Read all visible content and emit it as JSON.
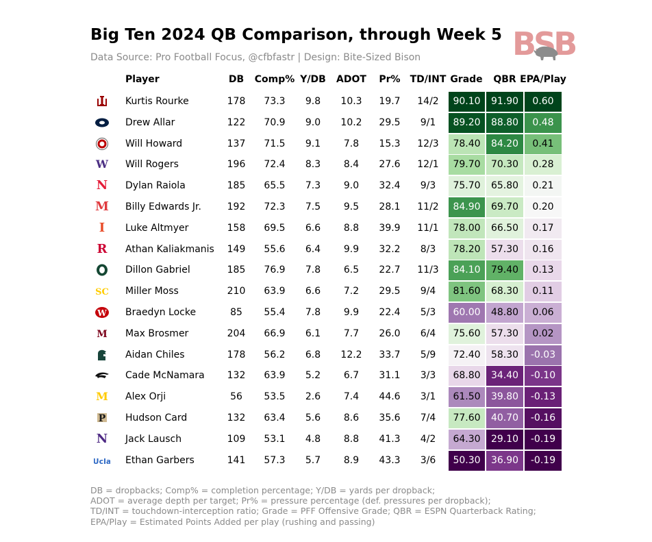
{
  "title": "Big Ten 2024 QB Comparison, through Week 5",
  "subtitle": "Data Source: Pro Football Focus, @cfbfastr | Design: Bite-Sized Bison",
  "brand": {
    "text": "BSB",
    "icon": "bison-icon",
    "color": "#e39a9a"
  },
  "footnotes": [
    "DB = dropbacks; Comp% = completion percentage; Y/DB = yards per dropback;",
    "ADOT = average depth per target; Pr% = pressure percentage (def. pressures per dropback);",
    "TD/INT = touchdown-interception ratio; Grade = PFF Offensive Grade; QBR = ESPN Quarterback Rating;",
    "EPA/Play = Estimated Points Added per play (rushing and passing)"
  ],
  "chart_data": {
    "type": "table",
    "columns": [
      "Player",
      "DB",
      "Comp%",
      "Y/DB",
      "ADOT",
      "Pr%",
      "TD/INT",
      "Grade",
      "QBR",
      "EPA/Play"
    ],
    "heatmap_columns": [
      "Grade",
      "QBR",
      "EPA/Play"
    ],
    "color_scale": {
      "low": "purple",
      "mid": "white",
      "high": "green"
    },
    "rows": [
      {
        "logo": "indiana-logo-icon",
        "logo_color": "#990000",
        "player": "Kurtis Rourke",
        "db": "178",
        "comp": "73.3",
        "ydb": "9.8",
        "adot": "10.3",
        "pr": "19.7",
        "tdint": "14/2",
        "grade": "90.10",
        "qbr": "91.90",
        "epa": "0.60"
      },
      {
        "logo": "penn-state-logo-icon",
        "logo_color": "#041e42",
        "player": "Drew Allar",
        "db": "122",
        "comp": "70.9",
        "ydb": "9.0",
        "adot": "10.2",
        "pr": "29.5",
        "tdint": "9/1",
        "grade": "89.20",
        "qbr": "88.80",
        "epa": "0.48"
      },
      {
        "logo": "ohio-state-logo-icon",
        "logo_color": "#bb0000",
        "player": "Will Howard",
        "db": "137",
        "comp": "71.5",
        "ydb": "9.1",
        "adot": "7.8",
        "pr": "15.3",
        "tdint": "12/3",
        "grade": "78.40",
        "qbr": "84.20",
        "epa": "0.41"
      },
      {
        "logo": "washington-logo-icon",
        "logo_color": "#4b2e83",
        "player": "Will Rogers",
        "db": "196",
        "comp": "72.4",
        "ydb": "8.3",
        "adot": "8.4",
        "pr": "27.6",
        "tdint": "12/1",
        "grade": "79.70",
        "qbr": "70.30",
        "epa": "0.28"
      },
      {
        "logo": "nebraska-logo-icon",
        "logo_color": "#e41c38",
        "player": "Dylan Raiola",
        "db": "185",
        "comp": "65.5",
        "ydb": "7.3",
        "adot": "9.0",
        "pr": "32.4",
        "tdint": "9/3",
        "grade": "75.70",
        "qbr": "65.80",
        "epa": "0.21"
      },
      {
        "logo": "maryland-logo-icon",
        "logo_color": "#e03a3e",
        "player": "Billy Edwards Jr.",
        "db": "192",
        "comp": "72.3",
        "ydb": "7.5",
        "adot": "9.5",
        "pr": "28.1",
        "tdint": "11/2",
        "grade": "84.90",
        "qbr": "69.70",
        "epa": "0.20"
      },
      {
        "logo": "illinois-logo-icon",
        "logo_color": "#e84a27",
        "player": "Luke Altmyer",
        "db": "158",
        "comp": "69.5",
        "ydb": "6.6",
        "adot": "8.8",
        "pr": "39.9",
        "tdint": "11/1",
        "grade": "78.00",
        "qbr": "66.50",
        "epa": "0.17"
      },
      {
        "logo": "rutgers-logo-icon",
        "logo_color": "#cc0033",
        "player": "Athan Kaliakmanis",
        "db": "149",
        "comp": "55.6",
        "ydb": "6.4",
        "adot": "9.9",
        "pr": "32.2",
        "tdint": "8/3",
        "grade": "78.20",
        "qbr": "57.30",
        "epa": "0.16"
      },
      {
        "logo": "oregon-logo-icon",
        "logo_color": "#154733",
        "player": "Dillon Gabriel",
        "db": "185",
        "comp": "76.9",
        "ydb": "7.8",
        "adot": "6.5",
        "pr": "22.7",
        "tdint": "11/3",
        "grade": "84.10",
        "qbr": "79.40",
        "epa": "0.13"
      },
      {
        "logo": "usc-logo-icon",
        "logo_color": "#ffcc00",
        "player": "Miller Moss",
        "db": "210",
        "comp": "63.9",
        "ydb": "6.6",
        "adot": "7.2",
        "pr": "29.5",
        "tdint": "9/4",
        "grade": "81.60",
        "qbr": "68.30",
        "epa": "0.11"
      },
      {
        "logo": "wisconsin-logo-icon",
        "logo_color": "#c5050c",
        "player": "Braedyn Locke",
        "db": "85",
        "comp": "55.4",
        "ydb": "7.8",
        "adot": "9.9",
        "pr": "22.4",
        "tdint": "5/3",
        "grade": "60.00",
        "qbr": "48.80",
        "epa": "0.06"
      },
      {
        "logo": "minnesota-logo-icon",
        "logo_color": "#7a0019",
        "player": "Max Brosmer",
        "db": "204",
        "comp": "66.9",
        "ydb": "6.1",
        "adot": "7.7",
        "pr": "26.0",
        "tdint": "6/4",
        "grade": "75.60",
        "qbr": "57.30",
        "epa": "0.02"
      },
      {
        "logo": "michigan-state-logo-icon",
        "logo_color": "#18453b",
        "player": "Aidan Chiles",
        "db": "178",
        "comp": "56.2",
        "ydb": "6.8",
        "adot": "12.2",
        "pr": "33.7",
        "tdint": "5/9",
        "grade": "72.40",
        "qbr": "58.30",
        "epa": "-0.03"
      },
      {
        "logo": "iowa-logo-icon",
        "logo_color": "#111111",
        "player": "Cade McNamara",
        "db": "132",
        "comp": "63.9",
        "ydb": "5.2",
        "adot": "6.7",
        "pr": "31.1",
        "tdint": "3/3",
        "grade": "68.80",
        "qbr": "34.40",
        "epa": "-0.10"
      },
      {
        "logo": "michigan-logo-icon",
        "logo_color": "#ffcb05",
        "player": "Alex Orji",
        "db": "56",
        "comp": "53.5",
        "ydb": "2.6",
        "adot": "7.4",
        "pr": "44.6",
        "tdint": "3/1",
        "grade": "61.50",
        "qbr": "39.80",
        "epa": "-0.13"
      },
      {
        "logo": "purdue-logo-icon",
        "logo_color": "#1a1a1a",
        "player": "Hudson Card",
        "db": "132",
        "comp": "63.4",
        "ydb": "5.6",
        "adot": "8.6",
        "pr": "35.6",
        "tdint": "7/4",
        "grade": "77.60",
        "qbr": "40.70",
        "epa": "-0.16"
      },
      {
        "logo": "northwestern-logo-icon",
        "logo_color": "#4e2a84",
        "player": "Jack Lausch",
        "db": "109",
        "comp": "53.1",
        "ydb": "4.8",
        "adot": "8.8",
        "pr": "41.3",
        "tdint": "4/2",
        "grade": "64.30",
        "qbr": "29.10",
        "epa": "-0.19"
      },
      {
        "logo": "ucla-logo-icon",
        "logo_color": "#2d68c4",
        "player": "Ethan Garbers",
        "db": "141",
        "comp": "57.3",
        "ydb": "5.7",
        "adot": "8.9",
        "pr": "43.3",
        "tdint": "3/6",
        "grade": "50.30",
        "qbr": "36.90",
        "epa": "-0.19"
      }
    ]
  }
}
